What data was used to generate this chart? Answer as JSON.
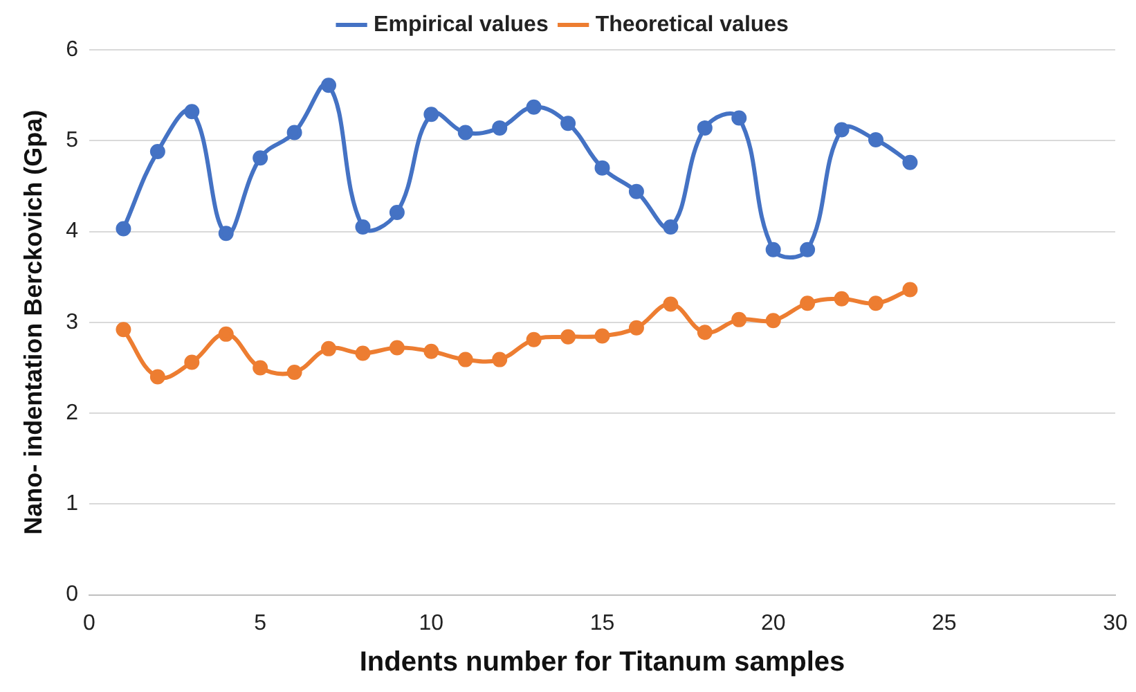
{
  "chart_data": {
    "type": "line",
    "xlabel": "Indents number for Titanum samples",
    "ylabel": "Nano- indentation Berckovich (Gpa)",
    "x": [
      1,
      2,
      3,
      4,
      5,
      6,
      7,
      8,
      9,
      10,
      11,
      12,
      13,
      14,
      15,
      16,
      17,
      18,
      19,
      20,
      21,
      22,
      23,
      24
    ],
    "series": [
      {
        "name": "Empirical values",
        "color": "#4472c4",
        "values": [
          4.03,
          4.88,
          5.32,
          3.98,
          4.81,
          5.09,
          5.61,
          4.05,
          4.21,
          5.29,
          5.09,
          5.14,
          5.37,
          5.19,
          4.7,
          4.44,
          4.05,
          5.14,
          5.25,
          3.8,
          3.8,
          5.12,
          5.01,
          4.76
        ]
      },
      {
        "name": "Theoretical values",
        "color": "#ed7d31",
        "values": [
          2.92,
          2.4,
          2.56,
          2.87,
          2.5,
          2.45,
          2.71,
          2.66,
          2.72,
          2.68,
          2.59,
          2.59,
          2.81,
          2.84,
          2.85,
          2.94,
          3.2,
          2.89,
          3.03,
          3.02,
          3.21,
          3.26,
          3.21,
          3.36
        ]
      }
    ],
    "xlim": [
      0,
      30
    ],
    "xticks": [
      0,
      5,
      10,
      15,
      20,
      25,
      30
    ],
    "ylim": [
      0,
      6
    ],
    "yticks": [
      0,
      1,
      2,
      3,
      4,
      5,
      6
    ],
    "grid": "y",
    "legend": "top",
    "marker": "circle",
    "line_style": "solid"
  }
}
